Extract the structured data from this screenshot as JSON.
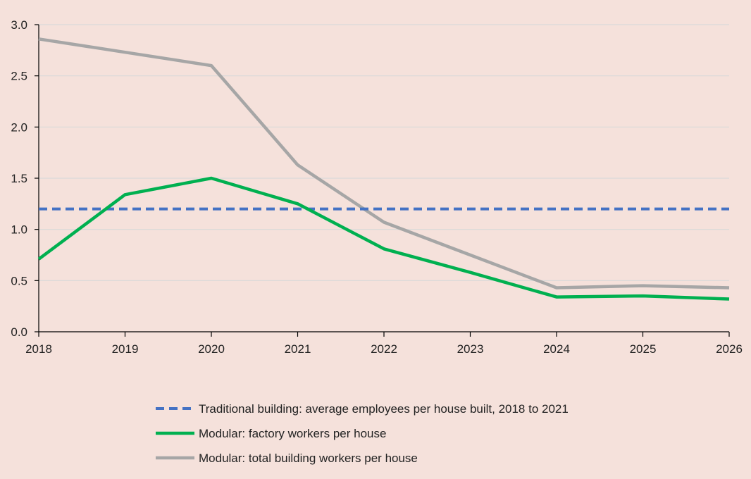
{
  "chart_data": {
    "type": "line",
    "x": [
      "2018",
      "2019",
      "2020",
      "2021",
      "2022",
      "2023",
      "2024",
      "2025",
      "2026"
    ],
    "ylim": [
      0,
      3.0
    ],
    "yticks": [
      "0.0",
      "0.5",
      "1.0",
      "1.5",
      "2.0",
      "2.5",
      "3.0"
    ],
    "grid": true,
    "legend_position": "bottom",
    "series": [
      {
        "name": "Traditional building: average employees per house built, 2018 to 2021",
        "style": "dashed",
        "color": "#4472c4",
        "values": [
          1.2,
          1.2,
          1.2,
          1.2,
          1.2,
          1.2,
          1.2,
          1.2,
          1.2
        ]
      },
      {
        "name": "Modular: factory workers per house",
        "style": "solid",
        "color": "#00b050",
        "values": [
          0.71,
          1.34,
          1.5,
          1.25,
          0.81,
          0.58,
          0.34,
          0.35,
          0.32
        ]
      },
      {
        "name": "Modular: total building workers per house",
        "style": "solid",
        "color": "#a6a6a6",
        "values": [
          2.86,
          2.73,
          2.6,
          1.63,
          1.07,
          0.75,
          0.43,
          0.45,
          0.43
        ]
      }
    ]
  },
  "colors": {
    "background": "#f5e1db",
    "gridline": "#d9d9d9",
    "axis": "#000000"
  }
}
